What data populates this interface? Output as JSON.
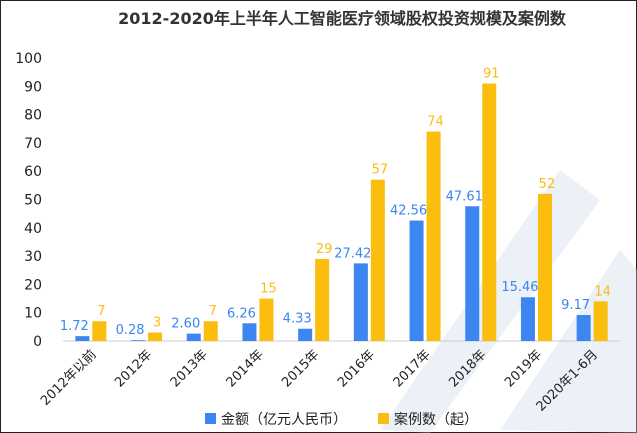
{
  "chart_data": {
    "type": "bar",
    "title": "2012-2020年上半年人工智能医疗领域股权投资规模及案例数",
    "categories": [
      "2012年以前",
      "2012年",
      "2013年",
      "2014年",
      "2015年",
      "2016年",
      "2017年",
      "2018年",
      "2019年",
      "2020年1-6月"
    ],
    "series": [
      {
        "name": "金额（亿元人民币）",
        "color": "#3d85f0",
        "values": [
          1.72,
          0.28,
          2.6,
          6.26,
          4.33,
          27.42,
          42.56,
          47.61,
          15.46,
          9.17
        ],
        "labels": [
          "1.72",
          "0.28",
          "2.60",
          "6.26",
          "4.33",
          "27.42",
          "42.56",
          "47.61",
          "15.46",
          "9.17"
        ]
      },
      {
        "name": "案例数（起）",
        "color": "#fbbd0e",
        "values": [
          7,
          3,
          7,
          15,
          29,
          57,
          74,
          91,
          52,
          14
        ],
        "labels": [
          "7",
          "3",
          "7",
          "15",
          "29",
          "57",
          "74",
          "91",
          "52",
          "14"
        ]
      }
    ],
    "ylim": [
      0,
      100
    ],
    "yticks": [
      0,
      10,
      20,
      30,
      40,
      50,
      60,
      70,
      80,
      90,
      100
    ],
    "grid": false,
    "legend": "bottom"
  }
}
